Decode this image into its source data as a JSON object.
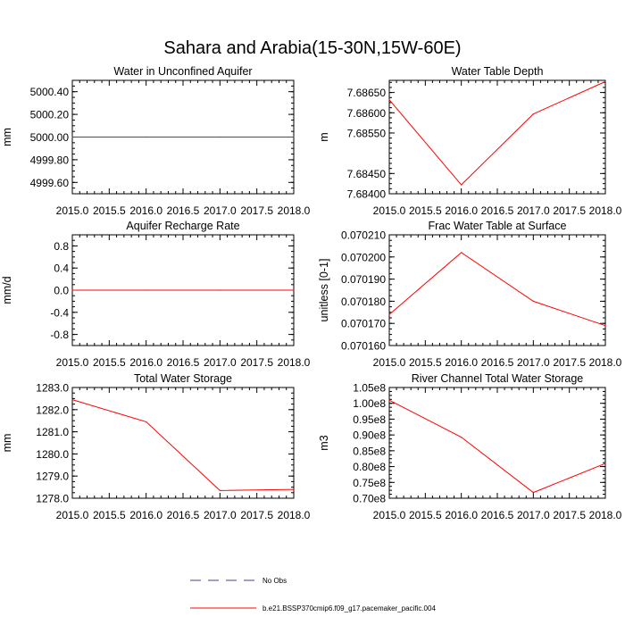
{
  "figure": {
    "title": "Sahara and Arabia(15-30N,15W-60E)"
  },
  "legend": {
    "items": [
      {
        "label": "No Obs",
        "color": "#4b3f8f",
        "style": "dashed"
      },
      {
        "label": "b.e21.BSSP370cmip6.f09_g17.pacemaker_pacific.004",
        "color": "#ff0000",
        "style": "solid"
      }
    ]
  },
  "chart_data": [
    {
      "type": "line",
      "title": "Water in Unconfined Aquifer",
      "ylabel": "mm",
      "xlabel": "",
      "xlim": [
        2015.0,
        2018.0
      ],
      "ylim": [
        4999.5,
        5000.5
      ],
      "xticks": [
        2015.0,
        2015.5,
        2016.0,
        2016.5,
        2017.0,
        2017.5,
        2018.0
      ],
      "xtick_labels": [
        "2015.0",
        "2015.5",
        "2016.0",
        "2016.5",
        "2017.0",
        "2017.5",
        "2018.0"
      ],
      "yticks": [
        4999.6,
        4999.8,
        5000.0,
        5000.2,
        5000.4
      ],
      "ytick_labels": [
        "4999.60",
        "4999.80",
        "5000.00",
        "5000.20",
        "5000.40"
      ],
      "series": [
        {
          "color": "#ff0000",
          "x": [
            2015.0,
            2016.0,
            2017.0,
            2018.0
          ],
          "y": [
            5000.0,
            5000.0,
            5000.0,
            5000.0
          ]
        }
      ]
    },
    {
      "type": "line",
      "title": "Water Table Depth",
      "ylabel": "m",
      "xlabel": "",
      "xlim": [
        2015.0,
        2018.0
      ],
      "ylim": [
        7.684,
        7.6868
      ],
      "xticks": [
        2015.0,
        2015.5,
        2016.0,
        2016.5,
        2017.0,
        2017.5,
        2018.0
      ],
      "xtick_labels": [
        "2015.0",
        "2015.5",
        "2016.0",
        "2016.5",
        "2017.0",
        "2017.5",
        "2018.0"
      ],
      "yticks": [
        7.684,
        7.6845,
        7.6855,
        7.686,
        7.6865
      ],
      "ytick_labels": [
        "7.68400",
        "7.68450",
        "7.68550",
        "7.68600",
        "7.68650"
      ],
      "series": [
        {
          "color": "#ff0000",
          "x": [
            2015.0,
            2016.0,
            2017.0,
            2018.0
          ],
          "y": [
            7.68632,
            7.68422,
            7.68597,
            7.68677
          ]
        }
      ]
    },
    {
      "type": "line",
      "title": "Aquifer Recharge Rate",
      "ylabel": "mm/d",
      "xlabel": "",
      "xlim": [
        2015.0,
        2018.0
      ],
      "ylim": [
        -1.0,
        1.0
      ],
      "xticks": [
        2015.0,
        2015.5,
        2016.0,
        2016.5,
        2017.0,
        2017.5,
        2018.0
      ],
      "xtick_labels": [
        "2015.0",
        "2015.5",
        "2016.0",
        "2016.5",
        "2017.0",
        "2017.5",
        "2018.0"
      ],
      "yticks": [
        -0.8,
        -0.4,
        0.0,
        0.4,
        0.8
      ],
      "ytick_labels": [
        "-0.8",
        "-0.4",
        "0.0",
        "0.4",
        "0.8"
      ],
      "series": [
        {
          "color": "#ff0000",
          "x": [
            2015.0,
            2016.0,
            2017.0,
            2018.0
          ],
          "y": [
            0.0,
            0.0,
            0.0,
            0.0
          ]
        }
      ]
    },
    {
      "type": "line",
      "title": "Frac Water Table at Surface",
      "ylabel": "unitless [0-1]",
      "xlabel": "",
      "xlim": [
        2015.0,
        2018.0
      ],
      "ylim": [
        0.07016,
        0.07021
      ],
      "xticks": [
        2015.0,
        2015.5,
        2016.0,
        2016.5,
        2017.0,
        2017.5,
        2018.0
      ],
      "xtick_labels": [
        "2015.0",
        "2015.5",
        "2016.0",
        "2016.5",
        "2017.0",
        "2017.5",
        "2018.0"
      ],
      "yticks": [
        0.07016,
        0.07017,
        0.07018,
        0.07019,
        0.0702,
        0.07021
      ],
      "ytick_labels": [
        "0.070160",
        "0.070170",
        "0.070180",
        "0.070190",
        "0.070200",
        "0.070210"
      ],
      "series": [
        {
          "color": "#ff0000",
          "x": [
            2015.0,
            2016.0,
            2017.0,
            2018.0
          ],
          "y": [
            0.070174,
            0.070202,
            0.07018,
            0.070169
          ]
        }
      ]
    },
    {
      "type": "line",
      "title": "Total Water Storage",
      "ylabel": "mm",
      "xlabel": "",
      "xlim": [
        2015.0,
        2018.0
      ],
      "ylim": [
        1278.0,
        1283.0
      ],
      "xticks": [
        2015.0,
        2015.5,
        2016.0,
        2016.5,
        2017.0,
        2017.5,
        2018.0
      ],
      "xtick_labels": [
        "2015.0",
        "2015.5",
        "2016.0",
        "2016.5",
        "2017.0",
        "2017.5",
        "2018.0"
      ],
      "yticks": [
        1278.0,
        1279.0,
        1280.0,
        1281.0,
        1282.0,
        1283.0
      ],
      "ytick_labels": [
        "1278.0",
        "1279.0",
        "1280.0",
        "1281.0",
        "1282.0",
        "1283.0"
      ],
      "series": [
        {
          "color": "#ff0000",
          "x": [
            2015.0,
            2016.0,
            2017.0,
            2018.0
          ],
          "y": [
            1282.45,
            1281.45,
            1278.35,
            1278.4
          ]
        }
      ]
    },
    {
      "type": "line",
      "title": "River Channel Total Water Storage",
      "ylabel": "m3",
      "xlabel": "",
      "xlim": [
        2015.0,
        2018.0
      ],
      "ylim": [
        70000000,
        105000000
      ],
      "xticks": [
        2015.0,
        2015.5,
        2016.0,
        2016.5,
        2017.0,
        2017.5,
        2018.0
      ],
      "xtick_labels": [
        "2015.0",
        "2015.5",
        "2016.0",
        "2016.5",
        "2017.0",
        "2017.5",
        "2018.0"
      ],
      "yticks": [
        70000000,
        75000000,
        80000000,
        85000000,
        90000000,
        95000000,
        100000000,
        105000000
      ],
      "ytick_labels": [
        "0.70e8",
        "0.75e8",
        "0.80e8",
        "0.85e8",
        "0.90e8",
        "0.95e8",
        "1.00e8",
        "1.05e8"
      ],
      "series": [
        {
          "color": "#ff0000",
          "x": [
            2015.0,
            2016.0,
            2017.0,
            2018.0
          ],
          "y": [
            101000000,
            89300000,
            71800000,
            81000000
          ]
        }
      ]
    }
  ]
}
